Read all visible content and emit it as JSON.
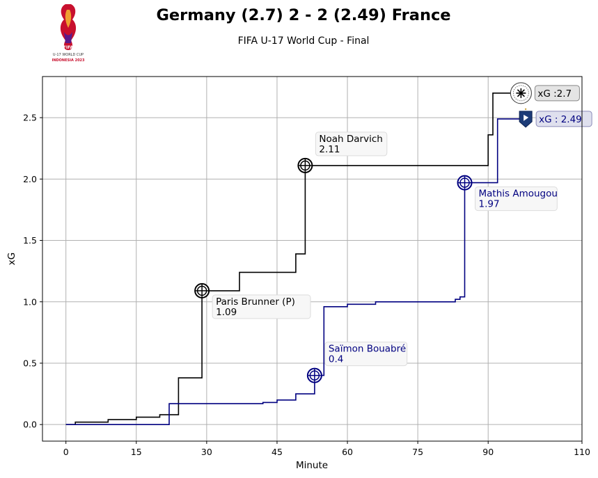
{
  "header": {
    "title": "Germany (2.7) 2 - 2 (2.49) France",
    "subtitle": "FIFA U-17 World Cup - Final",
    "logo_text": [
      "FIFA",
      "U-17 WORLD CUP",
      "INDONESIA 2023"
    ]
  },
  "chart_data": {
    "type": "line",
    "step": true,
    "xlabel": "Minute",
    "ylabel": "xG",
    "xlim": [
      -5,
      110
    ],
    "ylim": [
      -0.135,
      2.835
    ],
    "xticks": [
      0,
      15,
      30,
      45,
      60,
      75,
      90,
      110
    ],
    "yticks": [
      0.0,
      0.5,
      1.0,
      1.5,
      2.0,
      2.5
    ],
    "ytick_labels": [
      "0.0",
      "0.5",
      "1.0",
      "1.5",
      "2.0",
      "2.5"
    ],
    "grid": true,
    "series": [
      {
        "name": "Germany",
        "color": "#000000",
        "x": [
          0,
          2,
          9,
          15,
          20,
          24,
          29,
          37,
          49,
          51,
          90,
          91,
          97
        ],
        "y": [
          0,
          0.02,
          0.04,
          0.06,
          0.08,
          0.38,
          1.09,
          1.24,
          1.39,
          2.11,
          2.36,
          2.7,
          2.7
        ],
        "goals": [
          {
            "x": 29,
            "y": 1.09,
            "label": "Paris Brunner (P)",
            "value": "1.09",
            "side": "right-below"
          },
          {
            "x": 51,
            "y": 2.11,
            "label": "Noah Darvich",
            "value": "2.11",
            "side": "right-above"
          }
        ],
        "end_label": "xG :2.7"
      },
      {
        "name": "France",
        "color": "#000080",
        "x": [
          0,
          22,
          42,
          45,
          49,
          53,
          55,
          60,
          66,
          83,
          84,
          85,
          88,
          92,
          98
        ],
        "y": [
          0,
          0.17,
          0.18,
          0.2,
          0.25,
          0.4,
          0.96,
          0.98,
          1.0,
          1.02,
          1.04,
          1.97,
          1.97,
          2.49,
          2.49
        ],
        "goals": [
          {
            "x": 53,
            "y": 0.4,
            "label": "Saïmon Bouabré",
            "value": "0.4",
            "side": "right-above"
          },
          {
            "x": 85,
            "y": 1.97,
            "label": "Mathis Amougou",
            "value": "1.97",
            "side": "right-below"
          }
        ],
        "end_label": "xG : 2.49"
      }
    ]
  }
}
